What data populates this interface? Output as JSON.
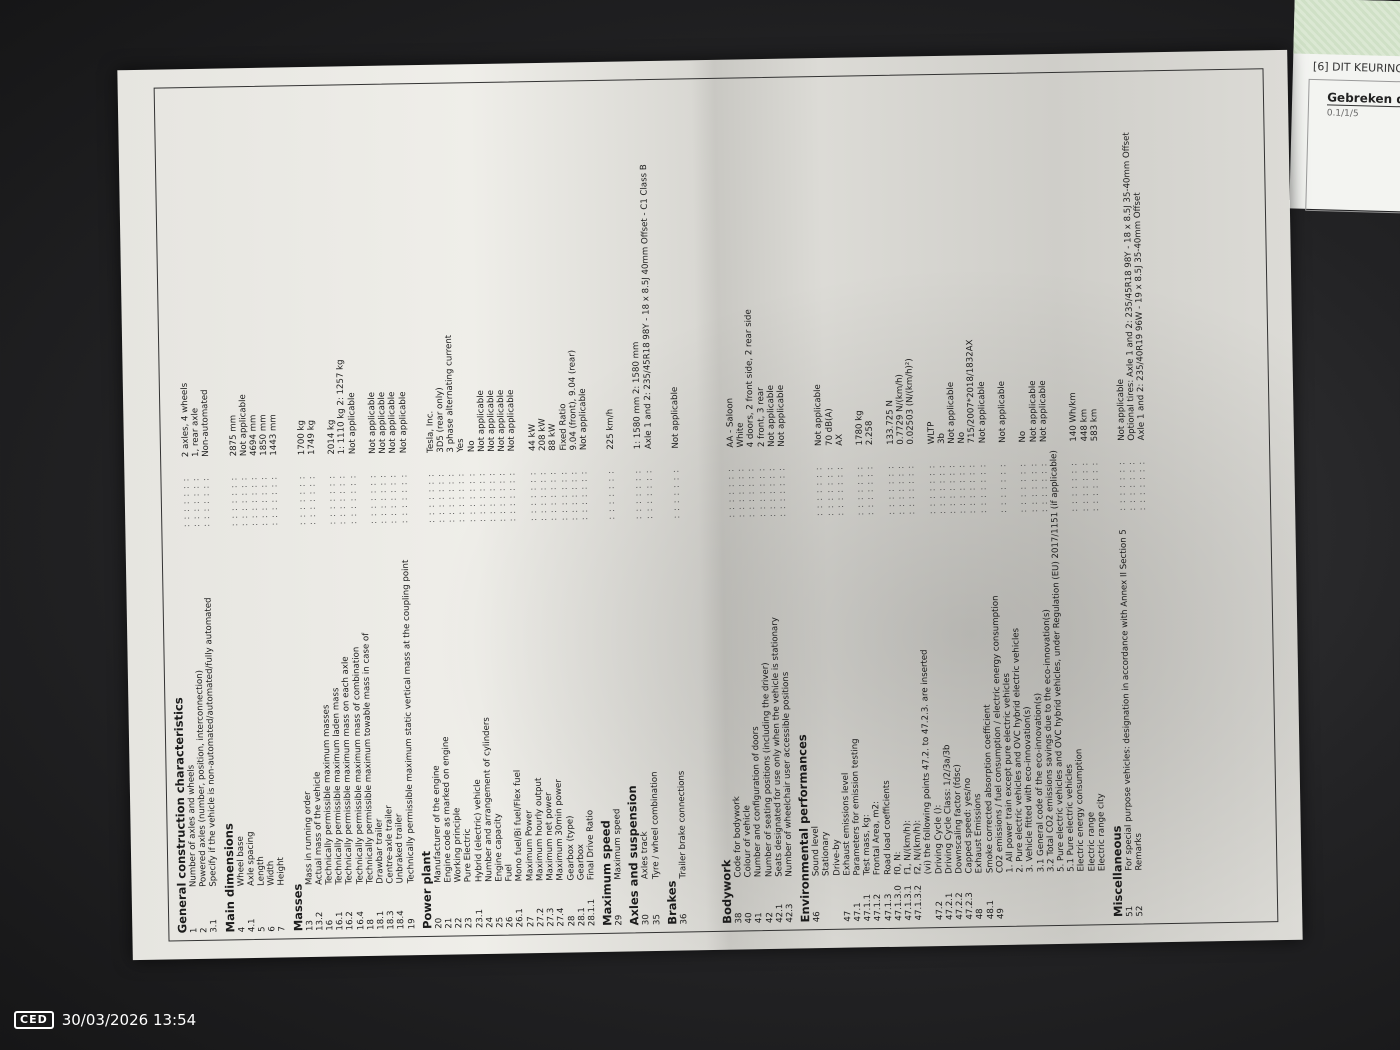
{
  "overlay": {
    "logo": "CED",
    "timestamp": "30/03/2026 13:54"
  },
  "background_doc": {
    "header": "[6] DIT KEURINGS",
    "box_title": "Gebreken d",
    "box_code": "0.1/1/5"
  },
  "sections": [
    {
      "title": "General construction characteristics",
      "rows": [
        {
          "num": "1",
          "label": "Number of axles and wheels",
          "value": "2 axles, 4 wheels"
        },
        {
          "num": "2",
          "label": "Powered axles (number, position, interconnection)",
          "value": "1, rear axle"
        },
        {
          "num": "3.1",
          "label": "Specify if the vehicle is non-automated/automated/fully automated",
          "value": "Non-automated"
        }
      ]
    },
    {
      "title": "Main dimensions",
      "rows": [
        {
          "num": "4",
          "label": "Wheel base",
          "value": "2875 mm"
        },
        {
          "num": "4.1",
          "label": "Axle spacing",
          "value": "Not applicable"
        },
        {
          "num": "5",
          "label": "Length",
          "value": "4694 mm"
        },
        {
          "num": "6",
          "label": "Width",
          "value": "1850 mm"
        },
        {
          "num": "7",
          "label": "Height",
          "value": "1443 mm"
        }
      ]
    },
    {
      "title": "Masses",
      "rows": [
        {
          "num": "13",
          "label": "Mass in running order",
          "value": "1700 kg"
        },
        {
          "num": "13.2",
          "label": "Actual mass of the vehicle",
          "value": "1749 kg"
        },
        {
          "num": "16",
          "label": "Technically permissible maximum masses",
          "value": ""
        },
        {
          "num": "16.1",
          "label": "Technically permissible maximum laden mass",
          "value": "2014 kg"
        },
        {
          "num": "16.2",
          "label": "Technically permissible maximum mass on each axle",
          "value": "1: 1110 kg  2: 1257 kg"
        },
        {
          "num": "16.4",
          "label": "Technically permissible maximum mass of combination",
          "value": "Not applicable"
        },
        {
          "num": "18",
          "label": "Technically permissible maximum towable mass in case of",
          "value": ""
        },
        {
          "num": "18.1",
          "label": "Drawbar trailer",
          "value": "Not applicable"
        },
        {
          "num": "18.3",
          "label": "Centre-axle trailer",
          "value": "Not applicable"
        },
        {
          "num": "18.4",
          "label": "Unbraked trailer",
          "value": "Not applicable"
        },
        {
          "num": "19",
          "label": "Technically permissible maximum static vertical mass at the coupling point",
          "value": "Not applicable"
        }
      ]
    },
    {
      "title": "Power plant",
      "rows": [
        {
          "num": "20",
          "label": "Manufacturer of the engine",
          "value": "Tesla, Inc."
        },
        {
          "num": "21",
          "label": "Engine code as marked on engine",
          "value": "3D5 (rear only)"
        },
        {
          "num": "22",
          "label": "Working principle",
          "value": "3 phase alternating current"
        },
        {
          "num": "23",
          "label": "Pure Electric",
          "value": "Yes"
        },
        {
          "num": "23.1",
          "label": "Hybrid (electric) vehicle",
          "value": "No"
        },
        {
          "num": "24",
          "label": "Number and arrangement of cylinders",
          "value": "Not applicable"
        },
        {
          "num": "25",
          "label": "Engine capacity",
          "value": "Not applicable"
        },
        {
          "num": "26",
          "label": "Fuel",
          "value": "Not applicable"
        },
        {
          "num": "26.1",
          "label": "Mono fuel/Bi fuel/Flex fuel",
          "value": "Not applicable"
        },
        {
          "num": "27",
          "label": "Maximum Power",
          "value": ""
        },
        {
          "num": "27.2",
          "label": "Maximum hourly output",
          "value": "44 kW"
        },
        {
          "num": "27.3",
          "label": "Maximum net power",
          "value": "208 kW"
        },
        {
          "num": "27.4",
          "label": "Maximum 30min power",
          "value": "88 kW"
        },
        {
          "num": "28",
          "label": "Gearbox (type)",
          "value": "Fixed Ratio"
        },
        {
          "num": "28.1",
          "label": "Gearbox",
          "value": "9.04 (front), 9.04 (rear)"
        },
        {
          "num": "28.1.1",
          "label": "Final Drive Ratio",
          "value": "Not applicable"
        }
      ]
    },
    {
      "title": "Maximum speed",
      "rows": [
        {
          "num": "29",
          "label": "Maximum speed",
          "value": "225 km/h"
        }
      ]
    },
    {
      "title": "Axles and suspension",
      "rows": [
        {
          "num": "30",
          "label": "Axles track",
          "value": "1: 1580 mm 2: 1580 mm"
        },
        {
          "num": "35",
          "label": "Tyre / wheel combination",
          "value": "Axle 1 and 2: 235/45R18 98Y - 18 x 8.5J 40mm Offset - C1 Class B"
        }
      ]
    },
    {
      "title": "Brakes",
      "rows": [
        {
          "num": "36",
          "label": "Trailer brake connections",
          "value": "Not applicable"
        }
      ]
    },
    {
      "title": "Bodywork",
      "rows": [
        {
          "num": "38",
          "label": "Code for bodywork",
          "value": "AA - Saloon"
        },
        {
          "num": "40",
          "label": "Colour of vehicle",
          "value": "White"
        },
        {
          "num": "41",
          "label": "Number and configuration of doors",
          "value": "4 doors, 2 front side, 2 rear side"
        },
        {
          "num": "42",
          "label": "Number of seating positions (including the driver)",
          "value": "2 front, 3 rear"
        },
        {
          "num": "42.1",
          "label": "Seats designated for use only when the vehicle is stationary",
          "value": "Not applicable"
        },
        {
          "num": "42.3",
          "label": "Number of wheelchair user accessible positions",
          "value": "Not applicable"
        }
      ]
    },
    {
      "title": "Environmental performances",
      "rows": [
        {
          "num": "46",
          "label": "Sound level",
          "value": ""
        },
        {
          "num": "",
          "label": "Stationary",
          "value": "Not applicable"
        },
        {
          "num": "",
          "label": "Drive-by",
          "value": "70 dB(A)"
        },
        {
          "num": "47",
          "label": "Exhaust emissions level",
          "value": "AX"
        },
        {
          "num": "47.1",
          "label": "Parameters for emission testing",
          "value": ""
        },
        {
          "num": "47.1.1",
          "label": "Test mass, kg:",
          "value": "1780 kg"
        },
        {
          "num": "47.1.2",
          "label": "Frontal Area, m2:",
          "value": "2.258"
        },
        {
          "num": "47.1.3",
          "label": "Road load coefficients",
          "value": ""
        },
        {
          "num": "47.1.3.0",
          "label": "f0, N:",
          "value": "133.725 N"
        },
        {
          "num": "47.1.3.1",
          "label": "f1, N/(km/h):",
          "value": "0.7729 N/(km/h)"
        },
        {
          "num": "47.1.3.2",
          "label": "f2, N/(km/h):",
          "value": "0.02503 (N/(km/h)²)"
        },
        {
          "num": "",
          "label": "(vi) the following points 47.2. to 47.2.3. are inserted",
          "value": ""
        },
        {
          "num": "47.2",
          "label": "Driving Cycle ():",
          "value": "WLTP"
        },
        {
          "num": "47.2.1",
          "label": "Driving Cycle Class: 1/2/3a/3b",
          "value": "3b"
        },
        {
          "num": "47.2.2",
          "label": "Downscaling factor (fdsc)",
          "value": "Not applicable"
        },
        {
          "num": "47.2.3",
          "label": "Capped speed: yes/no",
          "value": "No"
        },
        {
          "num": "48",
          "label": "Exhaust Emissions",
          "value": "715/2007*2018/1832AX"
        },
        {
          "num": "48.1",
          "label": "Smoke corrected absorption coefficient",
          "value": "Not applicable"
        },
        {
          "num": "49",
          "label": "CO2 emissions / fuel consumption / electric energy consumption",
          "value": ""
        },
        {
          "num": "",
          "label": "1. All power train except pure electric vehicles",
          "value": "Not applicable"
        },
        {
          "num": "",
          "label": "2. Pure electric vehicles and OVC hybrid electric vehicles",
          "value": ""
        },
        {
          "num": "",
          "label": "3. Vehicle fitted with eco-innovation(s)",
          "value": "No"
        },
        {
          "num": "",
          "label": "3.1 General code of the eco-innovation(s)",
          "value": "Not applicable"
        },
        {
          "num": "",
          "label": "3.2 Total CO2 emissions savings due to the eco-innovation(s)",
          "value": "Not applicable"
        },
        {
          "num": "",
          "label": "5. Pure electric vehicles and OVC hybrid vehicles, under Regulation (EU) 2017/1151 (if applicable)",
          "value": ""
        },
        {
          "num": "",
          "label": "5.1 Pure electric vehicles",
          "value": ""
        },
        {
          "num": "",
          "label": "Electric energy consumption",
          "value": "140 Wh/km"
        },
        {
          "num": "",
          "label": "Electric range",
          "value": "448 km"
        },
        {
          "num": "",
          "label": "Electric range city",
          "value": "583 km"
        }
      ]
    },
    {
      "title": "Miscellaneous",
      "rows": [
        {
          "num": "51",
          "label": "For special purpose vehicles: designation in accordance with Annex II Section 5",
          "value": "Not applicable"
        },
        {
          "num": "52",
          "label": "Remarks",
          "value": "Optional tires: Axle 1 and 2: 235/45R18 98Y - 18 x 8.5J 35-40mm Offset"
        },
        {
          "num": "",
          "label": "",
          "value": "Axle 1 and 2: 235/40R19 96W - 19 x 8.5J 35-40mm Offset"
        }
      ]
    }
  ]
}
